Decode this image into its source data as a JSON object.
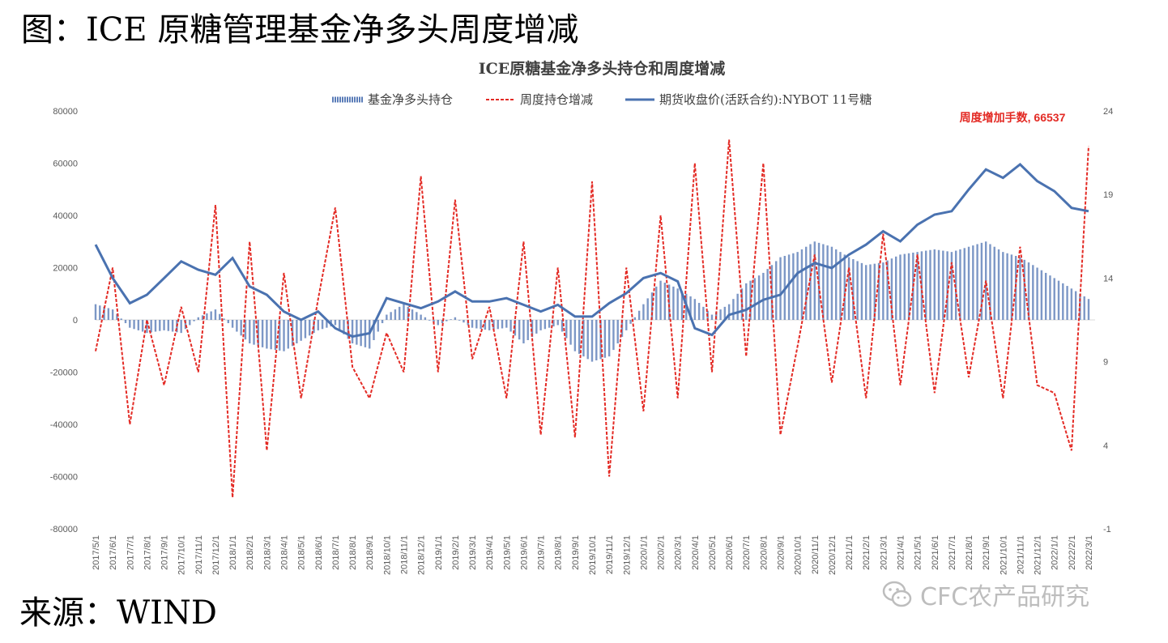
{
  "figure": {
    "title": "图：ICE 原糖管理基金净多头周度增减",
    "source": "来源：WIND",
    "watermark": "CFC农产品研究"
  },
  "colors": {
    "bars": "#5b7db8",
    "weekly_change": "#e32a24",
    "price": "#4a72b0",
    "text": "#404040",
    "axis": "#595959"
  },
  "chart_data": {
    "type": "bar+line",
    "title": "ICE原糖基金净多头持仓和周度增减",
    "legend": [
      "基金净多头持仓",
      "周度持仓增减",
      "期货收盘价(活跃合约):NYBOT 11号糖"
    ],
    "legend_position": "top",
    "annotation": "周度增加手数, 66537",
    "y_left": {
      "min": -80000,
      "max": 80000,
      "ticks": [
        80000,
        60000,
        40000,
        20000,
        0,
        -20000,
        -40000,
        -60000,
        -80000
      ]
    },
    "y_right": {
      "min": -1,
      "max": 24,
      "ticks": [
        24,
        19,
        14,
        9,
        4,
        -1
      ]
    },
    "x_labels": [
      "2017/5/1",
      "2017/6/1",
      "2017/7/1",
      "2017/8/1",
      "2017/9/1",
      "2017/10/1",
      "2017/11/1",
      "2017/12/1",
      "2018/1/1",
      "2018/2/1",
      "2018/3/1",
      "2018/4/1",
      "2018/5/1",
      "2018/6/1",
      "2018/7/1",
      "2018/8/1",
      "2018/9/1",
      "2018/10/1",
      "2018/11/1",
      "2018/12/1",
      "2019/1/1",
      "2019/2/1",
      "2019/3/1",
      "2019/4/1",
      "2019/5/1",
      "2019/6/1",
      "2019/7/1",
      "2019/8/1",
      "2019/9/1",
      "2019/10/1",
      "2019/11/1",
      "2019/12/1",
      "2020/1/1",
      "2020/2/1",
      "2020/3/1",
      "2020/4/1",
      "2020/5/1",
      "2020/6/1",
      "2020/7/1",
      "2020/8/1",
      "2020/9/1",
      "2020/10/1",
      "2020/11/1",
      "2020/12/1",
      "2021/1/1",
      "2021/2/1",
      "2021/3/1",
      "2021/4/1",
      "2021/5/1",
      "2021/6/1",
      "2021/7/1",
      "2021/8/1",
      "2021/9/1",
      "2021/10/1",
      "2021/11/1",
      "2021/12/1",
      "2022/1/1",
      "2022/2/1",
      "2022/3/1"
    ],
    "series": [
      {
        "name": "基金净多头持仓",
        "kind": "bar",
        "axis": "left",
        "values": [
          6000,
          4000,
          -3000,
          -5000,
          -4000,
          -5000,
          1000,
          4000,
          -3000,
          -9000,
          -11000,
          -12000,
          -8000,
          -4000,
          -2000,
          -9000,
          -11000,
          2000,
          6000,
          2000,
          -2000,
          1000,
          -3000,
          -4000,
          -3000,
          -9000,
          -4000,
          -2000,
          -12000,
          -16000,
          -14000,
          -4000,
          6000,
          15000,
          12000,
          8000,
          2000,
          6000,
          14000,
          18000,
          24000,
          26000,
          30000,
          28000,
          24000,
          21000,
          22000,
          25000,
          26000,
          27000,
          26000,
          28000,
          30000,
          26000,
          24000,
          20000,
          16000,
          12000,
          8000
        ]
      },
      {
        "name": "周度持仓增减",
        "kind": "line",
        "axis": "left",
        "values": [
          -12000,
          20000,
          -40000,
          0,
          -25000,
          5000,
          -20000,
          44000,
          -68000,
          30000,
          -50000,
          18000,
          -30000,
          8000,
          43000,
          -18000,
          -30000,
          -5000,
          -20000,
          55000,
          -20000,
          46000,
          -15000,
          5000,
          -30000,
          30000,
          -44000,
          20000,
          -45000,
          53000,
          -60000,
          20000,
          -35000,
          40000,
          -30000,
          60000,
          -20000,
          69000,
          -14000,
          60000,
          -44000,
          -10000,
          25000,
          -24000,
          20000,
          -30000,
          33000,
          -25000,
          25000,
          -28000,
          22000,
          -22000,
          15000,
          -30000,
          28000,
          -25000,
          -28000,
          -50000,
          66537
        ]
      },
      {
        "name": "期货收盘价(活跃合约):NYBOT 11号糖",
        "kind": "line",
        "axis": "right",
        "values": [
          16,
          14,
          12.5,
          13,
          14,
          15,
          14.5,
          14.2,
          15.2,
          13.5,
          13,
          12,
          11.5,
          12,
          11,
          10.5,
          10.7,
          12.8,
          12.5,
          12.2,
          12.6,
          13.2,
          12.6,
          12.6,
          12.8,
          12.4,
          12,
          12.4,
          11.7,
          11.7,
          12.5,
          13.1,
          14.0,
          14.3,
          13.8,
          11.0,
          10.6,
          11.8,
          12.1,
          12.7,
          13.0,
          14.3,
          14.9,
          14.6,
          15.4,
          16.0,
          16.8,
          16.2,
          17.2,
          17.8,
          18.0,
          19.3,
          20.5,
          20.0,
          20.8,
          19.8,
          19.2,
          18.2,
          18.0
        ]
      }
    ]
  }
}
